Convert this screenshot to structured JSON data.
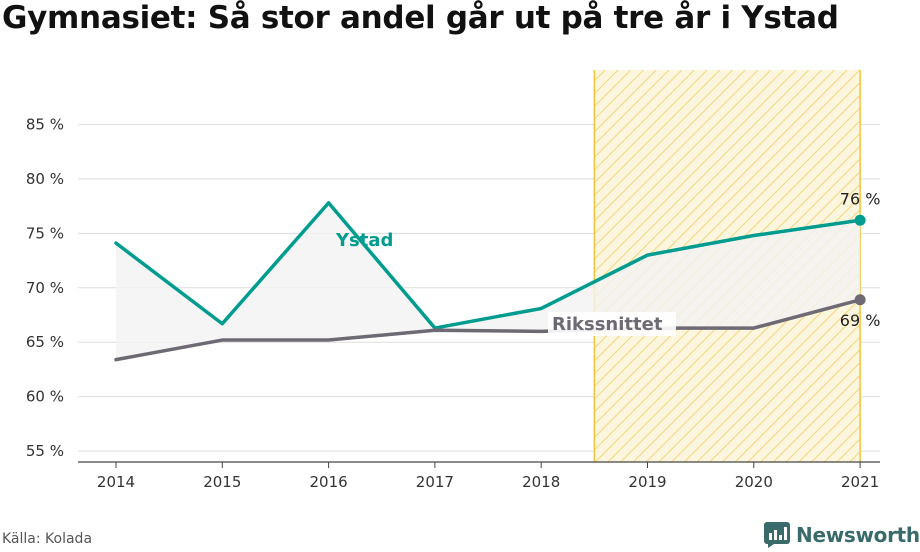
{
  "title": "Gymnasiet: Så stor andel går ut på tre år i Ystad",
  "source": "Källa: Kolada",
  "logo": {
    "text": "Newsworthy",
    "icon": "newsworthy-chart-icon"
  },
  "colors": {
    "ystad": "#009c8f",
    "riksnitt": "#6e6a74",
    "highlight": "#f0c33c",
    "fill": "#f2f2f2",
    "grid": "#dddddd",
    "text": "#222222"
  },
  "chart_data": {
    "type": "line",
    "x": [
      "2014",
      "2015",
      "2016",
      "2017",
      "2018",
      "2019",
      "2020",
      "2021"
    ],
    "yticks": [
      "55 %",
      "60 %",
      "65 %",
      "70 %",
      "75 %",
      "80 %",
      "85 %"
    ],
    "ylim": [
      54,
      90
    ],
    "series": [
      {
        "name": "Ystad",
        "values": [
          74.1,
          66.7,
          77.8,
          66.3,
          68.1,
          73.0,
          74.8,
          76.2
        ],
        "end_label": "76 %"
      },
      {
        "name": "Rikssnittet",
        "values": [
          63.4,
          65.2,
          65.2,
          66.1,
          66.0,
          66.3,
          66.3,
          68.9
        ],
        "end_label": "69 %"
      }
    ],
    "highlight_range": [
      "2018",
      "2021"
    ],
    "grid": true
  }
}
